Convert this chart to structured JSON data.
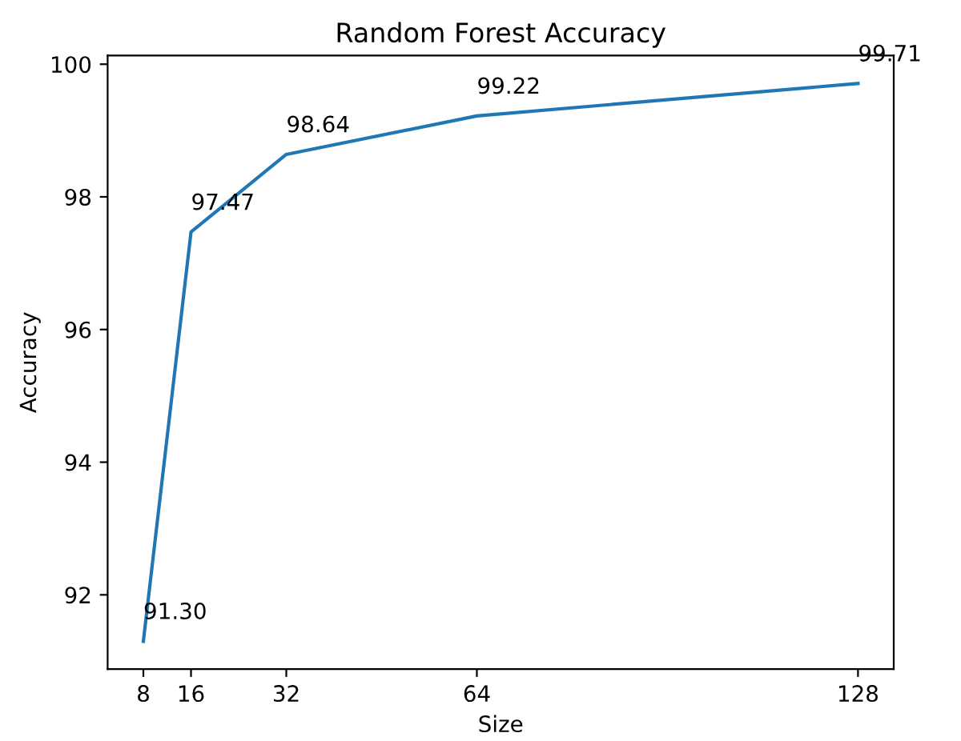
{
  "chart_data": {
    "type": "line",
    "title": "Random Forest Accuracy",
    "xlabel": "Size",
    "ylabel": "Accuracy",
    "x": [
      8,
      16,
      32,
      64,
      128
    ],
    "series": [
      {
        "color": "#1f77b4",
        "values": [
          91.3,
          97.47,
          98.64,
          99.22,
          99.71
        ],
        "value_labels": [
          "91.30",
          "97.47",
          "98.64",
          "99.22",
          "99.71"
        ]
      }
    ],
    "xlim": [
      2,
      134
    ],
    "ylim": [
      90.88,
      100.13
    ],
    "xticks": [
      8,
      16,
      32,
      64,
      128
    ],
    "yticks": [
      92,
      94,
      96,
      98,
      100
    ],
    "grid": false,
    "legend": false
  }
}
